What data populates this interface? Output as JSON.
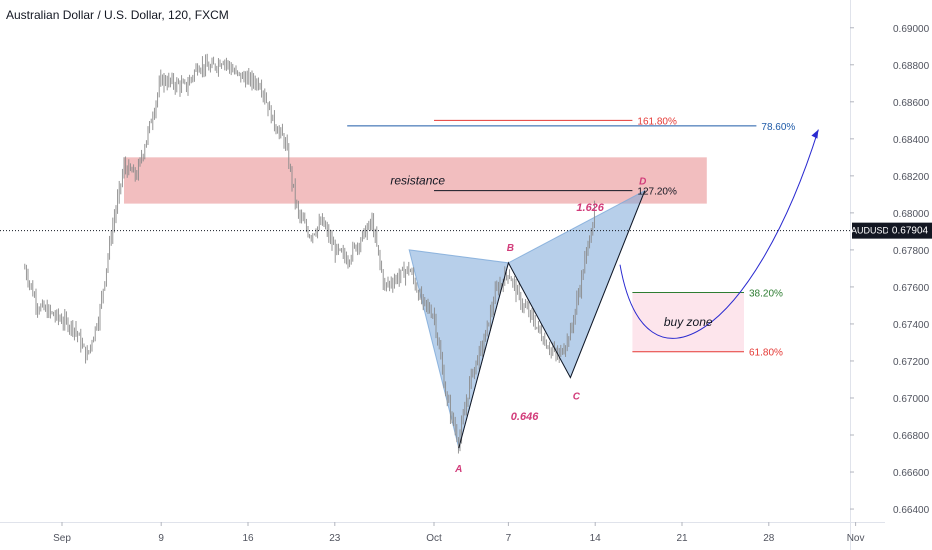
{
  "header": {
    "title": "Australian Dollar / U.S. Dollar, 120, FXCM"
  },
  "colors": {
    "candle": "#8a8a8a",
    "resistance_zone": "#eea8aa",
    "pattern_fill": "#7ba7d8",
    "pattern_label": "#d23c7a",
    "red_level": "#e53935",
    "blue_level": "#1e5aa8",
    "green_level": "#2e7d32",
    "buy_zone": "#fde2ea",
    "curve": "#2a2ad0"
  },
  "chart_data": {
    "type": "candlestick",
    "symbol": "AUDUSD",
    "last_price": "0.67904",
    "x_ticks": [
      "Sep",
      "9",
      "16",
      "23",
      "Oct",
      "7",
      "14",
      "21",
      "28",
      "Nov"
    ],
    "y_ticks": [
      "0.69000",
      "0.68800",
      "0.68600",
      "0.68400",
      "0.68200",
      "0.68000",
      "0.67800",
      "0.67600",
      "0.67400",
      "0.67200",
      "0.67000",
      "0.66800",
      "0.66600",
      "0.66400"
    ],
    "ylim": [
      0.6633,
      0.6915
    ],
    "price_path": [
      {
        "date": "Aug 29",
        "price": 0.677
      },
      {
        "date": "Aug 30",
        "price": 0.675
      },
      {
        "date": "Sep 2",
        "price": 0.6738
      },
      {
        "date": "Sep 3",
        "price": 0.6722
      },
      {
        "date": "Sep 4",
        "price": 0.6745
      },
      {
        "date": "Sep 5",
        "price": 0.679
      },
      {
        "date": "Sep 6",
        "price": 0.6825
      },
      {
        "date": "Sep 7",
        "price": 0.682
      },
      {
        "date": "Sep 8",
        "price": 0.6845
      },
      {
        "date": "Sep 9",
        "price": 0.6872
      },
      {
        "date": "Sep 10",
        "price": 0.687
      },
      {
        "date": "Sep 11",
        "price": 0.6868
      },
      {
        "date": "Sep 12",
        "price": 0.688
      },
      {
        "date": "Sep 13",
        "price": 0.6878
      },
      {
        "date": "Sep 14",
        "price": 0.6883
      },
      {
        "date": "Sep 15",
        "price": 0.6875
      },
      {
        "date": "Sep 16",
        "price": 0.6872
      },
      {
        "date": "Sep 17",
        "price": 0.687
      },
      {
        "date": "Sep 18",
        "price": 0.685
      },
      {
        "date": "Sep 19",
        "price": 0.6838
      },
      {
        "date": "Sep 20",
        "price": 0.68
      },
      {
        "date": "Sep 21",
        "price": 0.6788
      },
      {
        "date": "Sep 22",
        "price": 0.6795
      },
      {
        "date": "Sep 23",
        "price": 0.678
      },
      {
        "date": "Sep 24",
        "price": 0.6775
      },
      {
        "date": "Sep 25",
        "price": 0.6785
      },
      {
        "date": "Sep 26",
        "price": 0.6795
      },
      {
        "date": "Sep 27",
        "price": 0.676
      },
      {
        "date": "Sep 28",
        "price": 0.6765
      },
      {
        "date": "Sep 29",
        "price": 0.677
      },
      {
        "date": "Sep 30",
        "price": 0.6752
      },
      {
        "date": "Oct 1",
        "price": 0.6745
      },
      {
        "date": "Oct 2",
        "price": 0.67
      },
      {
        "date": "Oct 3",
        "price": 0.6676
      },
      {
        "date": "Oct 4",
        "price": 0.6712
      },
      {
        "date": "Oct 5",
        "price": 0.673
      },
      {
        "date": "Oct 6",
        "price": 0.6758
      },
      {
        "date": "Oct 7",
        "price": 0.6768
      },
      {
        "date": "Oct 8",
        "price": 0.6752
      },
      {
        "date": "Oct 9",
        "price": 0.6742
      },
      {
        "date": "Oct 10",
        "price": 0.673
      },
      {
        "date": "Oct 11",
        "price": 0.6722
      },
      {
        "date": "Oct 12",
        "price": 0.6735
      },
      {
        "date": "Oct 13",
        "price": 0.6768
      },
      {
        "date": "Oct 14",
        "price": 0.6803
      }
    ],
    "zones": [
      {
        "label": "resistance",
        "from_date": "Sep 6",
        "to_date": "Oct 23",
        "price_low": 0.6805,
        "price_high": 0.683
      },
      {
        "label": "buy zone",
        "from_date": "Oct 17",
        "to_date": "Oct 26",
        "price_low": 0.6725,
        "price_high": 0.6757
      }
    ],
    "levels": [
      {
        "label": "161.80%",
        "price": 0.685,
        "from_date": "Oct 1",
        "to_date": "Oct 17",
        "color": "#e53935"
      },
      {
        "label": "78.60%",
        "price": 0.6847,
        "from_date": "Sep 24",
        "to_date": "Oct 27",
        "color": "#1e5aa8"
      },
      {
        "label": "127.20%",
        "price": 0.6812,
        "from_date": "Oct 1",
        "to_date": "Oct 17",
        "color": "#131722"
      },
      {
        "label": "38.20%",
        "price": 0.6757,
        "from_date": "Oct 17",
        "to_date": "Oct 26",
        "color": "#2e7d32"
      },
      {
        "label": "61.80%",
        "price": 0.6725,
        "from_date": "Oct 17",
        "to_date": "Oct 26",
        "color": "#e53935"
      }
    ],
    "pattern_points": [
      {
        "label": "",
        "date": "Sep 29",
        "price": 0.678
      },
      {
        "label": "A",
        "date": "Oct 3",
        "price": 0.6673
      },
      {
        "label": "B",
        "date": "Oct 7",
        "price": 0.6773
      },
      {
        "label": "C",
        "date": "Oct 12",
        "price": 0.6711
      },
      {
        "label": "D",
        "date": "Oct 18",
        "price": 0.6812
      }
    ],
    "pattern_ratios": [
      "0.646",
      "1.626"
    ],
    "projection_curve": [
      {
        "date": "Oct 16",
        "price": 0.6772
      },
      {
        "date": "Oct 22",
        "price": 0.6728
      },
      {
        "date": "Oct 26",
        "price": 0.6745
      },
      {
        "date": "Nov 1",
        "price": 0.6845
      }
    ]
  }
}
